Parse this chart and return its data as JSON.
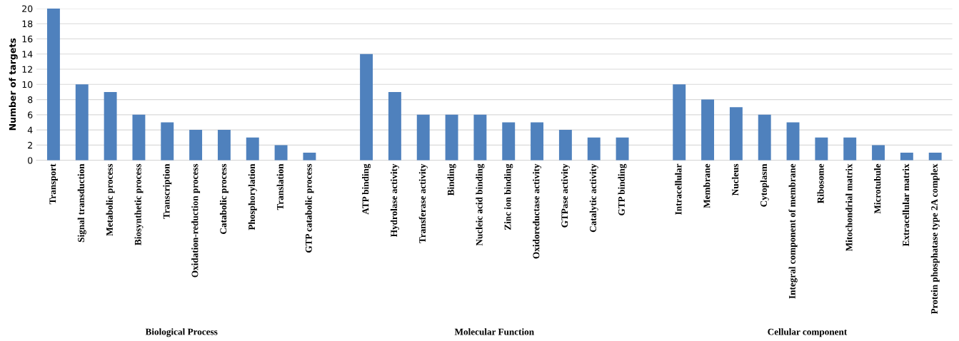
{
  "chart_data": {
    "type": "bar",
    "ylabel": "Number of targets",
    "categories": [
      "Transport",
      "Signal transduction",
      "Metabolic process",
      "Biosynthetic process",
      "Transcription",
      "Oxidation-reduction process",
      "Catabolic process",
      "Phosphorylation",
      "Translation",
      "GTP catabolic process",
      null,
      "ATP binding",
      "Hydrolase activity",
      "Transferase activity",
      "Binding",
      "Nucleic acid binding",
      "Zinc ion binding",
      "Oxidoreductase activity",
      "GTPase activity",
      "Catalytic activity",
      "GTP binding",
      null,
      "Intracellular",
      "Membrane",
      "Nucleus",
      "Cytoplasm",
      "Integral component of membrane",
      "Ribosome",
      "Mitochondrial matrix",
      "Microtubule",
      "Extracellular matrix",
      "Protein phosphatase type 2A complex"
    ],
    "values": [
      20,
      10,
      9,
      6,
      5,
      4,
      4,
      3,
      2,
      1,
      null,
      14,
      9,
      6,
      6,
      6,
      5,
      5,
      4,
      3,
      3,
      null,
      10,
      8,
      7,
      6,
      5,
      3,
      3,
      2,
      1,
      1
    ],
    "color": "#4f81bd",
    "ylim": [
      0,
      20
    ],
    "yticks": [
      0,
      2,
      4,
      6,
      8,
      10,
      12,
      14,
      16,
      18,
      20
    ],
    "grid": "y",
    "annotations": [
      "Biological Process",
      "Molecular Function",
      "Cellular component"
    ]
  }
}
